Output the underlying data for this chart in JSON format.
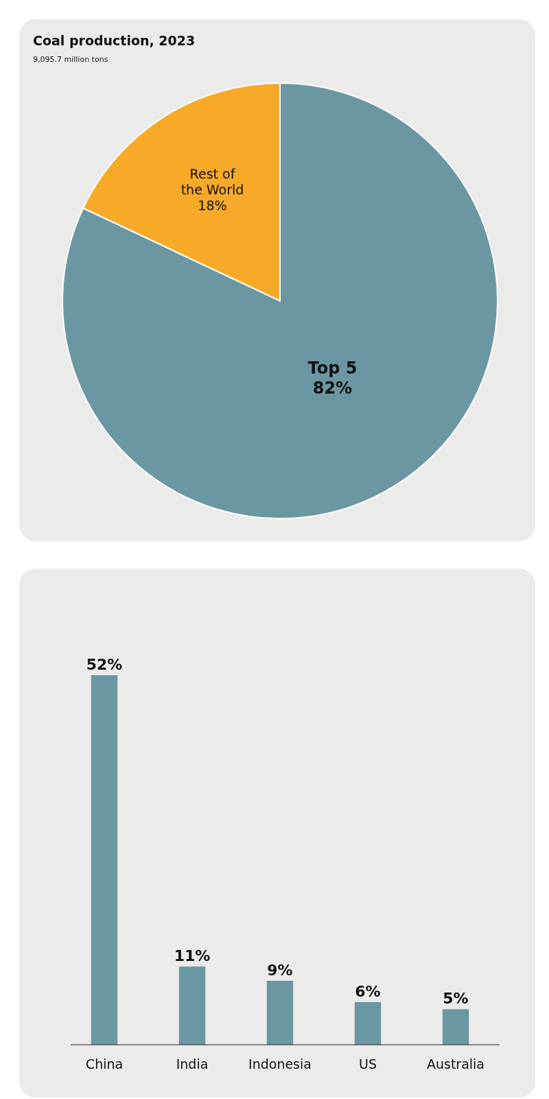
{
  "chart_data": [
    {
      "type": "pie",
      "title": "Coal production, 2023",
      "subtitle": "9,095.7 million tons",
      "categories": [
        "Top 5",
        "Rest of the World"
      ],
      "values": [
        82,
        18
      ],
      "colors": [
        "#6b97a2",
        "#f7a928"
      ],
      "value_labels": [
        "82%",
        "18%"
      ]
    },
    {
      "type": "bar",
      "categories": [
        "China",
        "India",
        "Indonesia",
        "US",
        "Australia"
      ],
      "values": [
        52,
        11,
        9,
        6,
        5
      ],
      "color": "#6b97a2",
      "value_labels": [
        "52%",
        "11%",
        "9%",
        "6%",
        "5%"
      ],
      "tick_labels": "x"
    }
  ]
}
